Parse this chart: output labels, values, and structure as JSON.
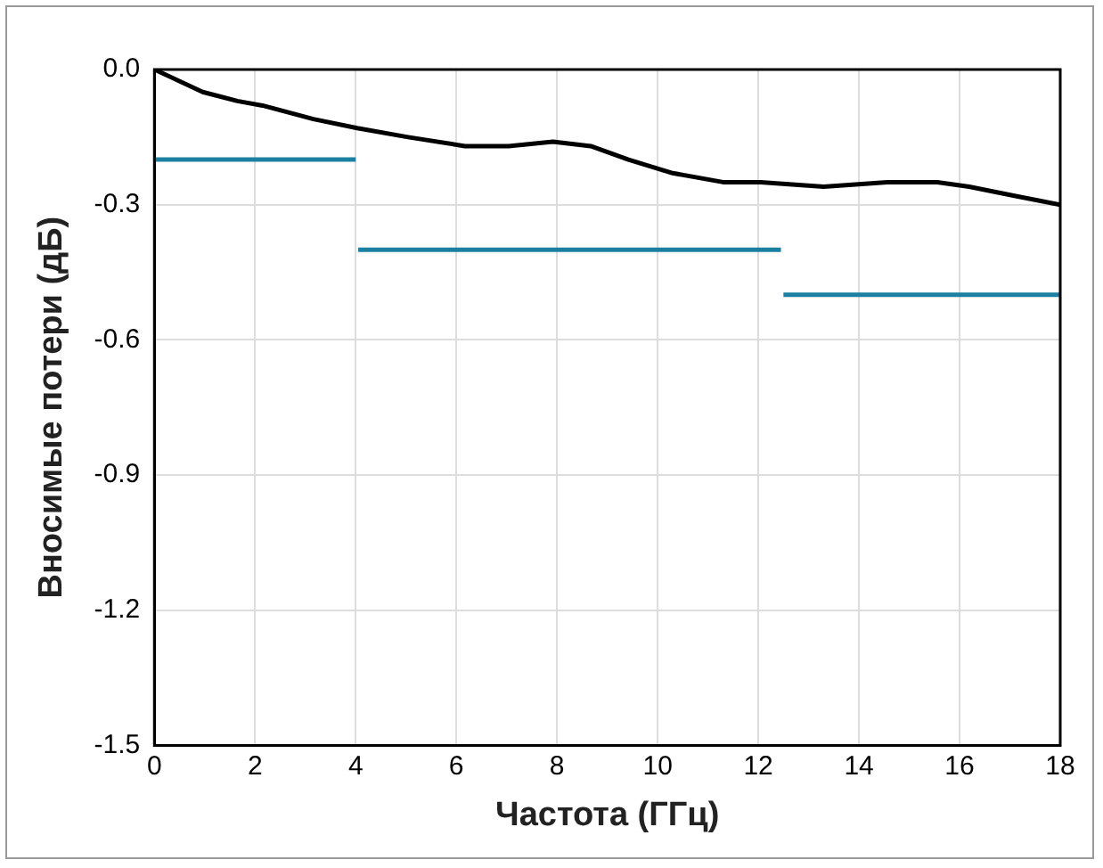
{
  "chart_data": {
    "type": "line",
    "xlabel": "Частота (ГГц)",
    "ylabel": "Вносимые потери (дБ)",
    "xlim": [
      0,
      18
    ],
    "xticks": [
      0,
      2,
      4,
      6,
      8,
      10,
      12,
      14,
      16,
      18
    ],
    "ylim": [
      -1.5,
      0
    ],
    "yticks": [
      {
        "value": -1.5,
        "label": "-1.5"
      },
      {
        "value": -1.2,
        "label": "-1.2"
      },
      {
        "value": -0.9,
        "label": "-0.9"
      },
      {
        "value": -0.6,
        "label": "-0.6"
      },
      {
        "value": -0.3,
        "label": "-0.3"
      },
      {
        "value": 0,
        "label": "0.0"
      }
    ],
    "grid": true,
    "legend": false,
    "marker": "none",
    "series": [
      {
        "color": "#000000",
        "x": [
          0,
          0.96,
          1.65,
          2.15,
          3.16,
          4.03,
          5.04,
          6.17,
          7.04,
          7.92,
          8.67,
          9.42,
          10.3,
          11.3,
          12.05,
          13.3,
          14.56,
          15.56,
          16.19,
          17.07,
          18
        ],
        "values": [
          0,
          -0.05,
          -0.07,
          -0.08,
          -0.11,
          -0.13,
          -0.15,
          -0.17,
          -0.17,
          -0.16,
          -0.17,
          -0.2,
          -0.23,
          -0.25,
          -0.25,
          -0.26,
          -0.25,
          -0.25,
          -0.26,
          -0.28,
          -0.3
        ]
      },
      {
        "color": "#1a7fa0",
        "x": [
          0,
          4
        ],
        "values": [
          -0.2,
          -0.2
        ]
      },
      {
        "color": "#1a7fa0",
        "x": [
          4.05,
          12.45
        ],
        "values": [
          -0.4,
          -0.4
        ]
      },
      {
        "color": "#1a7fa0",
        "x": [
          12.5,
          18
        ],
        "values": [
          -0.5,
          -0.5
        ]
      }
    ]
  }
}
